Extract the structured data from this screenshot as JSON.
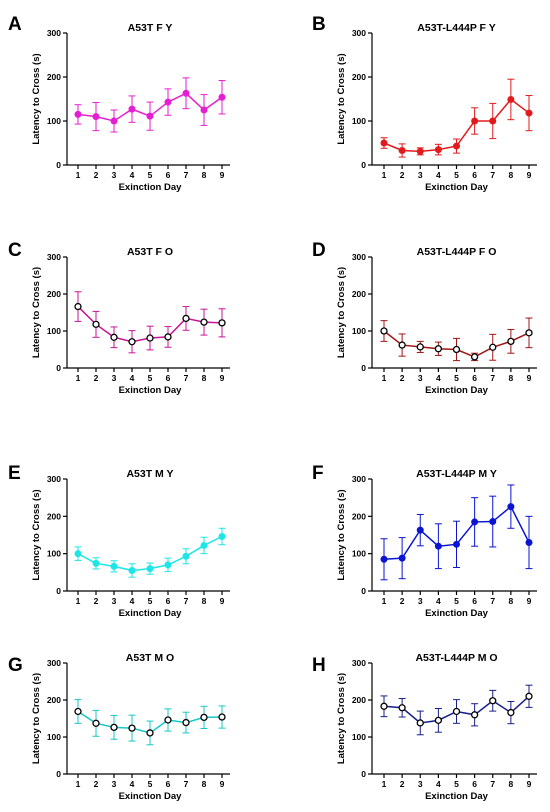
{
  "chart_data": [
    {
      "panel": "A",
      "type": "line",
      "title": "A53T F Y",
      "xlabel": "Exinction Day",
      "ylabel": "Latency to Cross (s)",
      "ylim": [
        0,
        300
      ],
      "yticks": [
        0,
        100,
        200,
        300
      ],
      "x": [
        1,
        2,
        3,
        4,
        5,
        6,
        7,
        8,
        9
      ],
      "color": "#e61ed2",
      "marker": "filled",
      "series": [
        {
          "values": [
            115,
            110,
            100,
            127,
            111,
            143,
            163,
            125,
            154
          ],
          "error": [
            22,
            32,
            25,
            30,
            32,
            30,
            35,
            35,
            38
          ]
        }
      ]
    },
    {
      "panel": "B",
      "type": "line",
      "title": "A53T-L444P F Y",
      "xlabel": "Exinction Day",
      "ylabel": "Latency to Cross (s)",
      "ylim": [
        0,
        300
      ],
      "yticks": [
        0,
        100,
        200,
        300
      ],
      "x": [
        1,
        2,
        3,
        4,
        5,
        6,
        7,
        8,
        9
      ],
      "color": "#e31a1c",
      "marker": "filled",
      "series": [
        {
          "values": [
            50,
            33,
            31,
            35,
            43,
            100,
            100,
            149,
            118
          ],
          "error": [
            12,
            15,
            8,
            12,
            16,
            30,
            40,
            46,
            40
          ]
        }
      ]
    },
    {
      "panel": "C",
      "type": "line",
      "title": "A53T F O",
      "xlabel": "Exinction Day",
      "ylabel": "Latency to Cross (s)",
      "ylim": [
        0,
        300
      ],
      "yticks": [
        0,
        100,
        200,
        300
      ],
      "x": [
        1,
        2,
        3,
        4,
        5,
        6,
        7,
        8,
        9
      ],
      "color": "#c81496",
      "marker": "open",
      "series": [
        {
          "values": [
            166,
            118,
            83,
            71,
            81,
            84,
            134,
            124,
            122
          ],
          "error": [
            40,
            35,
            28,
            30,
            32,
            28,
            32,
            35,
            38
          ]
        }
      ]
    },
    {
      "panel": "D",
      "type": "line",
      "title": "A53T-L444P F O",
      "xlabel": "Exinction Day",
      "ylabel": "Latency to Cross (s)",
      "ylim": [
        0,
        300
      ],
      "yticks": [
        0,
        100,
        200,
        300
      ],
      "x": [
        1,
        2,
        3,
        4,
        5,
        6,
        7,
        8,
        9
      ],
      "color": "#a01414",
      "marker": "open",
      "series": [
        {
          "values": [
            100,
            62,
            57,
            52,
            50,
            30,
            56,
            72,
            95
          ],
          "error": [
            28,
            30,
            15,
            18,
            30,
            10,
            35,
            32,
            40
          ]
        }
      ]
    },
    {
      "panel": "E",
      "type": "line",
      "title": "A53T M Y",
      "xlabel": "Exinction Day",
      "ylabel": "Latency to Cross (s)",
      "ylim": [
        0,
        300
      ],
      "yticks": [
        0,
        100,
        200,
        300
      ],
      "x": [
        1,
        2,
        3,
        4,
        5,
        6,
        7,
        8,
        9
      ],
      "color": "#1ee6e6",
      "marker": "filled",
      "series": [
        {
          "values": [
            100,
            74,
            66,
            55,
            60,
            70,
            93,
            122,
            146
          ],
          "error": [
            18,
            15,
            15,
            18,
            15,
            18,
            20,
            22,
            22
          ]
        }
      ]
    },
    {
      "panel": "F",
      "type": "line",
      "title": "A53T-L444P M Y",
      "xlabel": "Exinction Day",
      "ylabel": "Latency to Cross (s)",
      "ylim": [
        0,
        300
      ],
      "yticks": [
        0,
        100,
        200,
        300
      ],
      "x": [
        1,
        2,
        3,
        4,
        5,
        6,
        7,
        8,
        9
      ],
      "color": "#0a14d2",
      "marker": "filled",
      "series": [
        {
          "values": [
            85,
            88,
            163,
            120,
            125,
            185,
            186,
            226,
            130
          ],
          "error": [
            55,
            55,
            42,
            60,
            62,
            65,
            68,
            58,
            70
          ]
        }
      ]
    },
    {
      "panel": "G",
      "type": "line",
      "title": "A53T M O",
      "xlabel": "Exinction Day",
      "ylabel": "Latency to Cross (s)",
      "ylim": [
        0,
        300
      ],
      "yticks": [
        0,
        100,
        200,
        300
      ],
      "x": [
        1,
        2,
        3,
        4,
        5,
        6,
        7,
        8,
        9
      ],
      "color": "#14c8c8",
      "marker": "open",
      "series": [
        {
          "values": [
            169,
            137,
            126,
            124,
            111,
            146,
            139,
            153,
            154
          ],
          "error": [
            32,
            35,
            32,
            35,
            32,
            30,
            28,
            30,
            30
          ]
        }
      ]
    },
    {
      "panel": "H",
      "type": "line",
      "title": "A53T-L444P M O",
      "xlabel": "Exinction Day",
      "ylabel": "Latency to Cross (s)",
      "ylim": [
        0,
        300
      ],
      "yticks": [
        0,
        100,
        200,
        300
      ],
      "x": [
        1,
        2,
        3,
        4,
        5,
        6,
        7,
        8,
        9
      ],
      "color": "#141e8c",
      "marker": "open",
      "series": [
        {
          "values": [
            183,
            179,
            138,
            145,
            169,
            160,
            198,
            166,
            210
          ],
          "error": [
            28,
            25,
            32,
            32,
            32,
            30,
            28,
            30,
            30
          ]
        }
      ]
    }
  ]
}
